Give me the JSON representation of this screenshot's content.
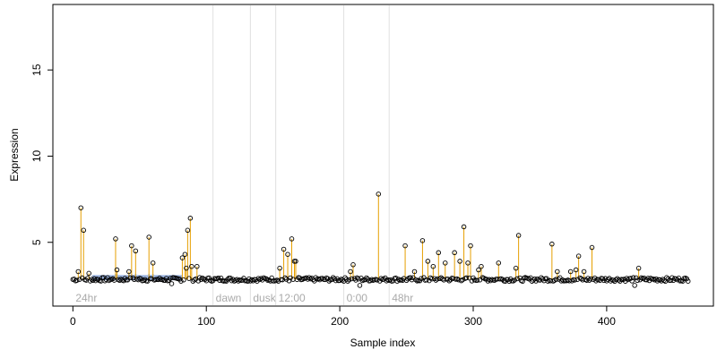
{
  "chart_data": {
    "type": "scatter",
    "title": "",
    "xlabel": "Sample index",
    "ylabel": "Expression",
    "xlim": [
      -15,
      480
    ],
    "ylim": [
      1.3,
      18.8
    ],
    "x_ticks": [
      0,
      100,
      200,
      300,
      400
    ],
    "y_ticks": [
      5,
      10,
      15
    ],
    "grid": false,
    "baseline": 2.85,
    "n_samples": 462,
    "colors": {
      "points_stroke": "#000000",
      "stem": "#E69F00",
      "highlight": "#9DB5E0",
      "region_line": "#e0e0e0",
      "region_text": "#aaaaaa"
    },
    "regions": [
      {
        "label": "24hr",
        "x": 0
      },
      {
        "label": "dawn",
        "x": 105
      },
      {
        "label": "dusk",
        "x": 133
      },
      {
        "label": "12:00",
        "x": 152
      },
      {
        "label": "0:00",
        "x": 203
      },
      {
        "label": "48hr",
        "x": 237
      }
    ],
    "highlight_range": [
      15,
      81
    ],
    "peaks": [
      {
        "x": 4,
        "y": 3.3
      },
      {
        "x": 6,
        "y": 7.0
      },
      {
        "x": 8,
        "y": 5.7
      },
      {
        "x": 12,
        "y": 3.2
      },
      {
        "x": 32,
        "y": 5.2
      },
      {
        "x": 33,
        "y": 3.4
      },
      {
        "x": 42,
        "y": 3.3
      },
      {
        "x": 44,
        "y": 4.8
      },
      {
        "x": 47,
        "y": 4.5
      },
      {
        "x": 57,
        "y": 5.3
      },
      {
        "x": 60,
        "y": 3.8
      },
      {
        "x": 82,
        "y": 4.1
      },
      {
        "x": 84,
        "y": 4.3
      },
      {
        "x": 85,
        "y": 3.5
      },
      {
        "x": 86,
        "y": 5.7
      },
      {
        "x": 88,
        "y": 6.4
      },
      {
        "x": 89,
        "y": 3.6
      },
      {
        "x": 93,
        "y": 3.6
      },
      {
        "x": 155,
        "y": 3.5
      },
      {
        "x": 158,
        "y": 4.6
      },
      {
        "x": 161,
        "y": 4.3
      },
      {
        "x": 164,
        "y": 5.2
      },
      {
        "x": 166,
        "y": 3.9
      },
      {
        "x": 167,
        "y": 3.9
      },
      {
        "x": 208,
        "y": 3.3
      },
      {
        "x": 210,
        "y": 3.7
      },
      {
        "x": 229,
        "y": 7.8
      },
      {
        "x": 249,
        "y": 4.8
      },
      {
        "x": 256,
        "y": 3.3
      },
      {
        "x": 262,
        "y": 5.1
      },
      {
        "x": 266,
        "y": 3.9
      },
      {
        "x": 270,
        "y": 3.6
      },
      {
        "x": 274,
        "y": 4.4
      },
      {
        "x": 279,
        "y": 3.8
      },
      {
        "x": 286,
        "y": 4.4
      },
      {
        "x": 290,
        "y": 3.9
      },
      {
        "x": 293,
        "y": 5.9
      },
      {
        "x": 296,
        "y": 3.8
      },
      {
        "x": 298,
        "y": 4.8
      },
      {
        "x": 304,
        "y": 3.4
      },
      {
        "x": 306,
        "y": 3.6
      },
      {
        "x": 319,
        "y": 3.8
      },
      {
        "x": 332,
        "y": 3.5
      },
      {
        "x": 334,
        "y": 5.4
      },
      {
        "x": 359,
        "y": 4.9
      },
      {
        "x": 363,
        "y": 3.3
      },
      {
        "x": 373,
        "y": 3.3
      },
      {
        "x": 377,
        "y": 3.4
      },
      {
        "x": 379,
        "y": 4.2
      },
      {
        "x": 383,
        "y": 3.3
      },
      {
        "x": 389,
        "y": 4.7
      },
      {
        "x": 424,
        "y": 3.5
      }
    ],
    "dips": [
      {
        "x": 74,
        "y": 2.6
      },
      {
        "x": 215,
        "y": 2.5
      },
      {
        "x": 421,
        "y": 2.5
      }
    ]
  }
}
